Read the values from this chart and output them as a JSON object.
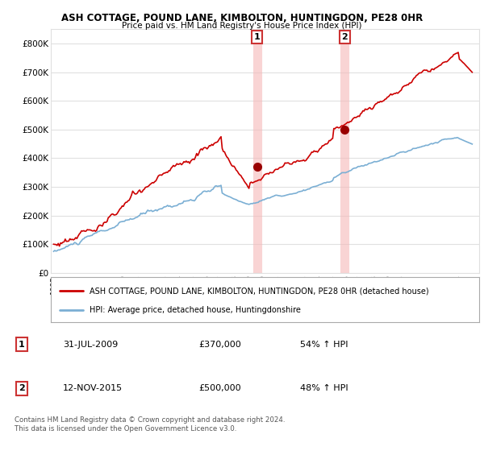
{
  "title": "ASH COTTAGE, POUND LANE, KIMBOLTON, HUNTINGDON, PE28 0HR",
  "subtitle": "Price paid vs. HM Land Registry's House Price Index (HPI)",
  "ylim": [
    0,
    850000
  ],
  "yticks": [
    0,
    100000,
    200000,
    300000,
    400000,
    500000,
    600000,
    700000,
    800000
  ],
  "ytick_labels": [
    "£0",
    "£100K",
    "£200K",
    "£300K",
    "£400K",
    "£500K",
    "£600K",
    "£700K",
    "£800K"
  ],
  "sale1_date": 2009.58,
  "sale1_price": 370000,
  "sale1_label": "1",
  "sale2_date": 2015.87,
  "sale2_price": 500000,
  "sale2_label": "2",
  "red_line_color": "#cc0000",
  "blue_line_color": "#7bafd4",
  "marker_color": "#990000",
  "vline_color": "#f5b8b8",
  "grid_color": "#e0e0e0",
  "legend_line1": "ASH COTTAGE, POUND LANE, KIMBOLTON, HUNTINGDON, PE28 0HR (detached house)",
  "legend_line2": "HPI: Average price, detached house, Huntingdonshire",
  "table_row1": [
    "1",
    "31-JUL-2009",
    "£370,000",
    "54% ↑ HPI"
  ],
  "table_row2": [
    "2",
    "12-NOV-2015",
    "£500,000",
    "48% ↑ HPI"
  ],
  "footnote": "Contains HM Land Registry data © Crown copyright and database right 2024.\nThis data is licensed under the Open Government Licence v3.0.",
  "background_color": "#ffffff"
}
